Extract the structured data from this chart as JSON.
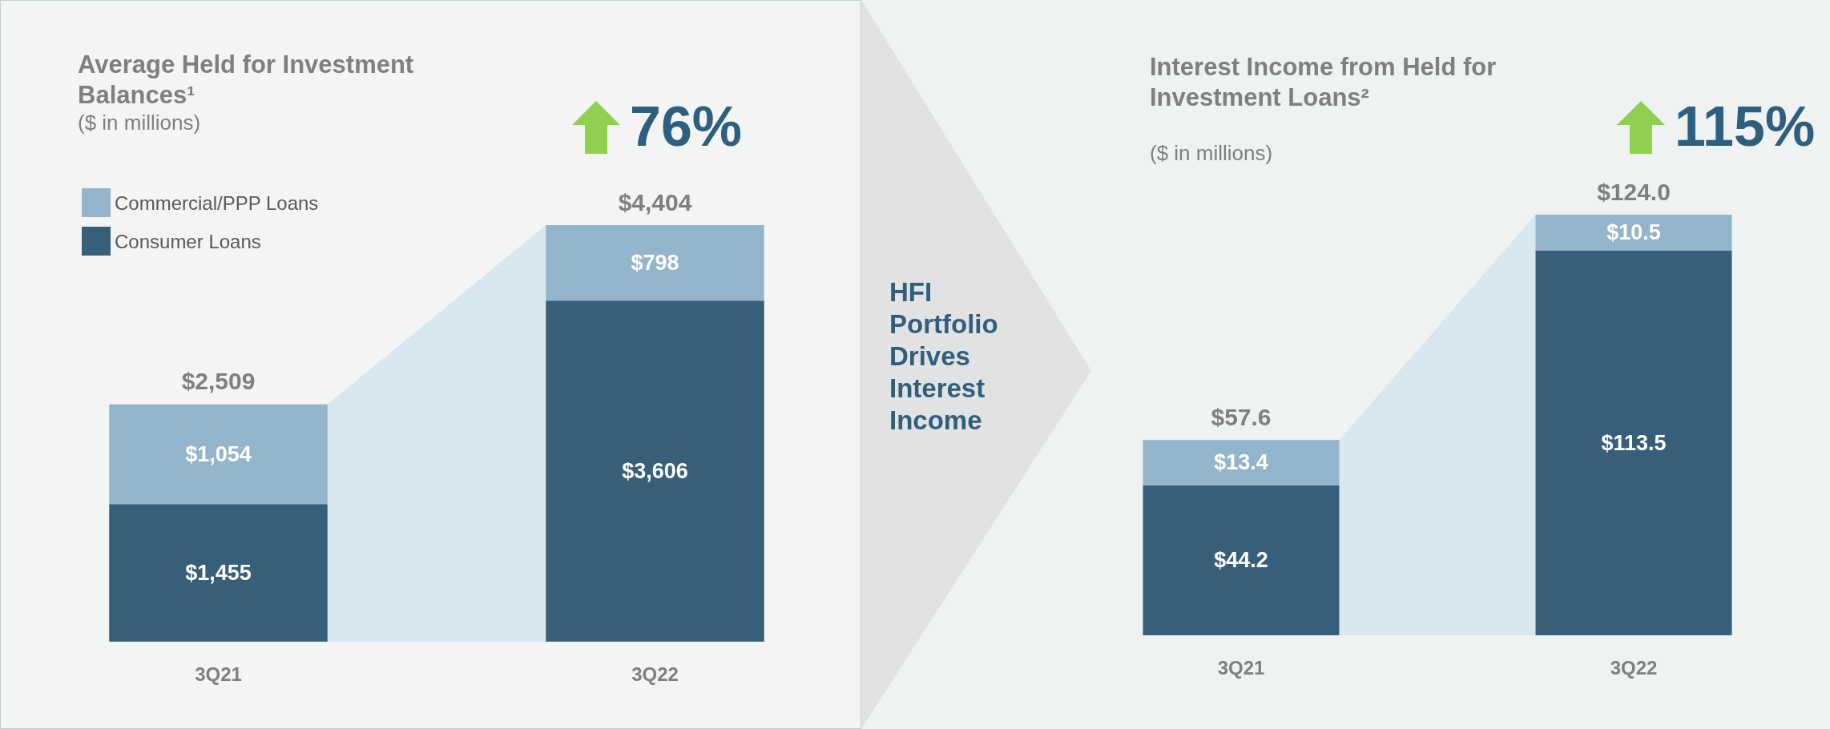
{
  "chart_data": [
    {
      "type": "bar",
      "title": "Average Held for Investment Balances¹",
      "subtitle": "($ in millions)",
      "categories": [
        "3Q21",
        "3Q22"
      ],
      "stacked": true,
      "legend": "top left",
      "series": [
        {
          "name": "Consumer Loans",
          "color": "#375f7a",
          "values": [
            1455,
            3606
          ],
          "value_labels": [
            "$1,455",
            "$3,606"
          ]
        },
        {
          "name": "Commercial/PPP Loans",
          "color": "#93b5cb",
          "values": [
            1054,
            798
          ],
          "value_labels": [
            "$1,054",
            "$798"
          ]
        }
      ],
      "totals": [
        "$2,509",
        "$4,404"
      ],
      "annotations": [
        "76%"
      ]
    },
    {
      "type": "other",
      "title": "HFI Portfolio Drives Interest Income"
    },
    {
      "type": "bar",
      "title": "Interest Income from Held for Investment Loans²",
      "subtitle": "($ in millions)",
      "categories": [
        "3Q21",
        "3Q22"
      ],
      "stacked": true,
      "series": [
        {
          "color": "#375f7a",
          "values": [
            44.2,
            113.5
          ],
          "value_labels": [
            "$44.2",
            "$113.5"
          ]
        },
        {
          "color": "#93b5cb",
          "values": [
            13.4,
            10.5
          ],
          "value_labels": [
            "$13.4",
            "$10.5"
          ]
        }
      ],
      "totals": [
        "$57.6",
        "$124.0"
      ],
      "annotations": [
        "115%"
      ]
    }
  ]
}
